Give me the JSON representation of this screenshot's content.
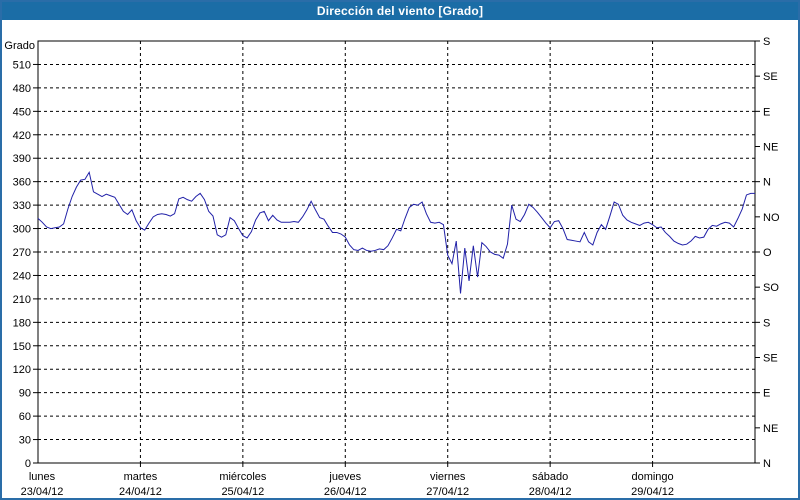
{
  "window": {
    "title": "Dirección del viento [Grado]"
  },
  "colors": {
    "titlebar_bg": "#1b6da6",
    "titlebar_text": "#ffffff",
    "outer_border": "#2a6da8",
    "plot_bg": "#ffffff",
    "axis": "#000000",
    "grid": "#000000",
    "line": "#2121a8"
  },
  "chart_data": {
    "type": "line",
    "title": "Dirección del viento [Grado]",
    "y_left_label": "Grado",
    "y_left_ticks": [
      510,
      480,
      450,
      420,
      390,
      360,
      330,
      300,
      270,
      240,
      210,
      180,
      150,
      120,
      90,
      60,
      30,
      0
    ],
    "ylim": [
      0,
      540
    ],
    "grid": true,
    "y_right_compass": [
      {
        "deg": 540,
        "label": "S"
      },
      {
        "deg": 495,
        "label": "SE"
      },
      {
        "deg": 450,
        "label": "E"
      },
      {
        "deg": 405,
        "label": "NE"
      },
      {
        "deg": 360,
        "label": "N"
      },
      {
        "deg": 315,
        "label": "NO"
      },
      {
        "deg": 270,
        "label": "O"
      },
      {
        "deg": 225,
        "label": "SO"
      },
      {
        "deg": 180,
        "label": "S"
      },
      {
        "deg": 135,
        "label": "SE"
      },
      {
        "deg": 90,
        "label": "E"
      },
      {
        "deg": 45,
        "label": "NE"
      },
      {
        "deg": 0,
        "label": "N"
      }
    ],
    "days": [
      {
        "name": "lunes",
        "date": "23/04/12"
      },
      {
        "name": "martes",
        "date": "24/04/12"
      },
      {
        "name": "miércoles",
        "date": "25/04/12"
      },
      {
        "name": "jueves",
        "date": "26/04/12"
      },
      {
        "name": "viernes",
        "date": "27/04/12"
      },
      {
        "name": "sábado",
        "date": "28/04/12"
      },
      {
        "name": "domingo",
        "date": "29/04/12"
      }
    ],
    "points_per_day": 24,
    "series": [
      {
        "name": "Dirección del viento",
        "unit": "Grado",
        "color": "#2121a8",
        "values": [
          313,
          308,
          302,
          300,
          301,
          302,
          306,
          325,
          341,
          353,
          362,
          363,
          372,
          347,
          344,
          341,
          344,
          342,
          340,
          331,
          322,
          318,
          324,
          310,
          301,
          298,
          307,
          315,
          318,
          319,
          318,
          316,
          319,
          338,
          340,
          337,
          335,
          341,
          345,
          337,
          322,
          316,
          292,
          289,
          292,
          314,
          310,
          300,
          291,
          288,
          296,
          311,
          320,
          322,
          310,
          317,
          311,
          308,
          308,
          308,
          309,
          308,
          315,
          324,
          335,
          324,
          314,
          312,
          303,
          295,
          295,
          293,
          289,
          279,
          273,
          272,
          275,
          272,
          271,
          272,
          274,
          273,
          278,
          288,
          299,
          297,
          313,
          327,
          331,
          330,
          334,
          319,
          308,
          307,
          308,
          305,
          266,
          255,
          284,
          217,
          275,
          233,
          278,
          238,
          282,
          277,
          270,
          267,
          266,
          262,
          280,
          330,
          312,
          309,
          318,
          331,
          327,
          321,
          314,
          307,
          301,
          309,
          310,
          300,
          286,
          285,
          284,
          283,
          295,
          283,
          279,
          295,
          305,
          299,
          316,
          334,
          331,
          317,
          311,
          308,
          306,
          304,
          307,
          308,
          305,
          301,
          302,
          295,
          290,
          284,
          281,
          279,
          280,
          284,
          290,
          288,
          289,
          299,
          304,
          303,
          306,
          308,
          307,
          302,
          313,
          325,
          343,
          345,
          345
        ]
      }
    ]
  }
}
